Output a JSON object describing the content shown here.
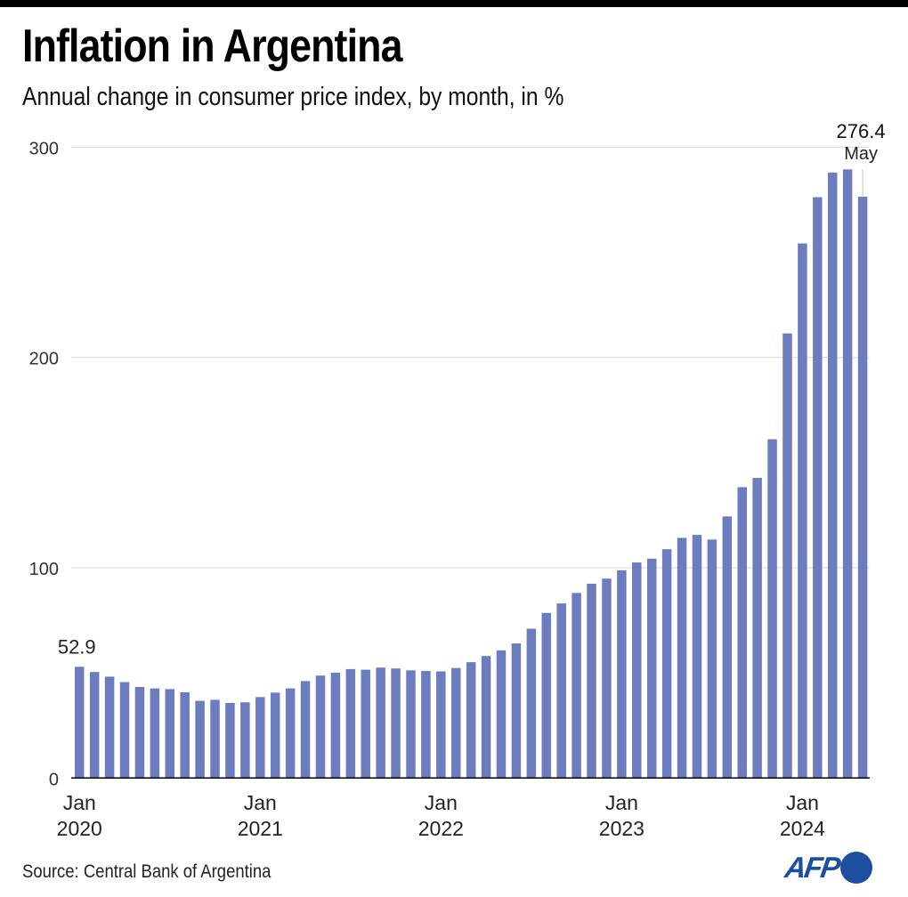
{
  "header": {
    "title": "Inflation in Argentina",
    "subtitle": "Annual change in consumer price index, by month, in %"
  },
  "footer": {
    "source": "Source: Central Bank of Argentina",
    "logo_text": "AFP"
  },
  "colors": {
    "bar": "#6b7dbe",
    "gridline": "#d9d9d9",
    "axis": "#000000",
    "leader_line": "#cccccc",
    "logo": "#1d4ea0"
  },
  "chart_data": {
    "type": "bar",
    "title": "Inflation in Argentina",
    "subtitle": "Annual change in consumer price index, by month, in %",
    "xlabel": "",
    "ylabel": "",
    "ylim": [
      0,
      300
    ],
    "yticks": [
      0,
      100,
      200,
      300
    ],
    "grid": true,
    "x_tick_labels": [
      {
        "index": 0,
        "line1": "Jan",
        "line2": "2020"
      },
      {
        "index": 12,
        "line1": "Jan",
        "line2": "2021"
      },
      {
        "index": 24,
        "line1": "Jan",
        "line2": "2022"
      },
      {
        "index": 36,
        "line1": "Jan",
        "line2": "2023"
      },
      {
        "index": 48,
        "line1": "Jan",
        "line2": "2024"
      }
    ],
    "categories": [
      "Jan 2020",
      "Feb 2020",
      "Mar 2020",
      "Apr 2020",
      "May 2020",
      "Jun 2020",
      "Jul 2020",
      "Aug 2020",
      "Sep 2020",
      "Oct 2020",
      "Nov 2020",
      "Dec 2020",
      "Jan 2021",
      "Feb 2021",
      "Mar 2021",
      "Apr 2021",
      "May 2021",
      "Jun 2021",
      "Jul 2021",
      "Aug 2021",
      "Sep 2021",
      "Oct 2021",
      "Nov 2021",
      "Dec 2021",
      "Jan 2022",
      "Feb 2022",
      "Mar 2022",
      "Apr 2022",
      "May 2022",
      "Jun 2022",
      "Jul 2022",
      "Aug 2022",
      "Sep 2022",
      "Oct 2022",
      "Nov 2022",
      "Dec 2022",
      "Jan 2023",
      "Feb 2023",
      "Mar 2023",
      "Apr 2023",
      "May 2023",
      "Jun 2023",
      "Jul 2023",
      "Aug 2023",
      "Sep 2023",
      "Oct 2023",
      "Nov 2023",
      "Dec 2023",
      "Jan 2024",
      "Feb 2024",
      "Mar 2024",
      "Apr 2024",
      "May 2024"
    ],
    "values": [
      52.9,
      50.4,
      48.2,
      45.6,
      43.3,
      42.6,
      42.3,
      40.8,
      36.7,
      37.2,
      35.7,
      36.0,
      38.5,
      40.6,
      42.6,
      46.1,
      48.7,
      50.1,
      51.8,
      51.5,
      52.5,
      52.1,
      51.2,
      50.9,
      50.7,
      52.3,
      55.1,
      58.0,
      60.7,
      64.0,
      71.0,
      78.5,
      83.0,
      88.0,
      92.4,
      94.8,
      98.8,
      102.5,
      104.3,
      108.8,
      114.2,
      115.6,
      113.4,
      124.4,
      138.3,
      142.7,
      161.1,
      211.4,
      254.2,
      276.2,
      287.9,
      289.4,
      276.4
    ],
    "annotations": [
      {
        "index": 0,
        "text": "52.9"
      },
      {
        "index": 52,
        "text": "276.4",
        "subtext": "May",
        "leader_line": true
      }
    ]
  }
}
